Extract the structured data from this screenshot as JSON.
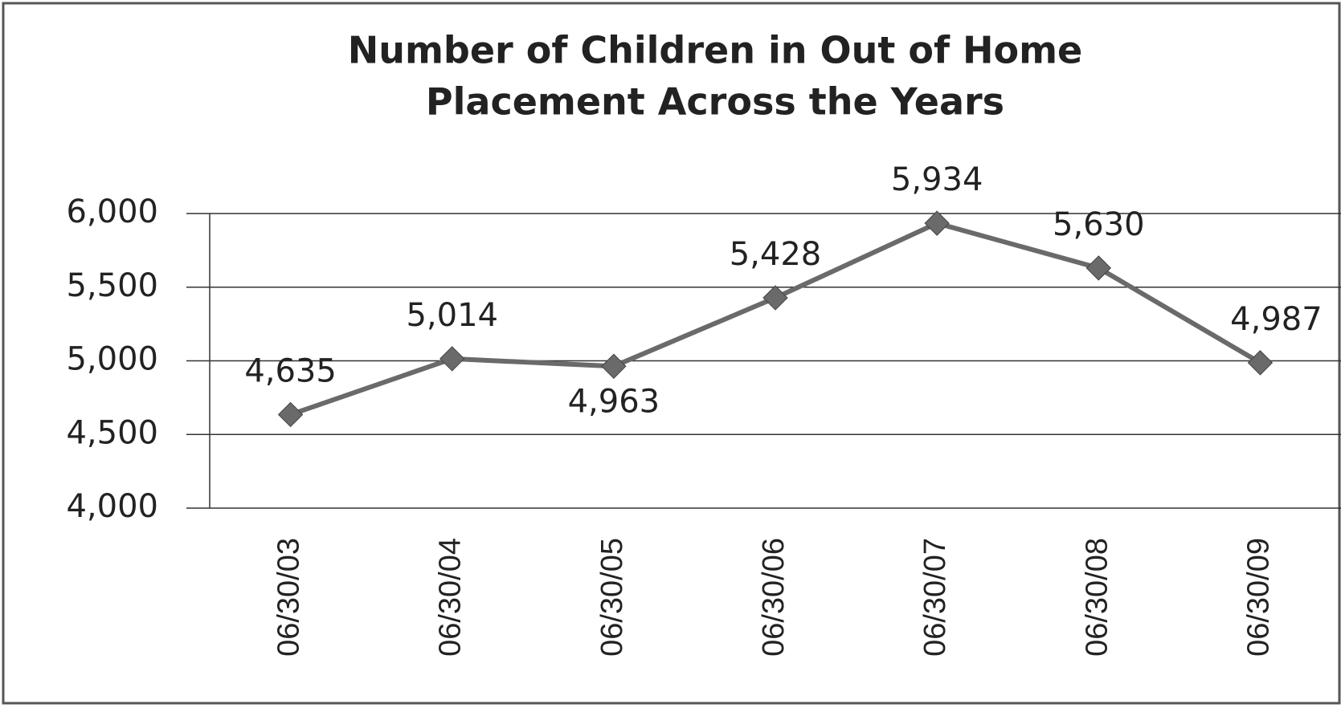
{
  "chart_data": {
    "type": "line",
    "title": [
      "Number of Children in Out of Home",
      "Placement Across the Years"
    ],
    "categories": [
      "06/30/03",
      "06/30/04",
      "06/30/05",
      "06/30/06",
      "06/30/07",
      "06/30/08",
      "06/30/09"
    ],
    "values": [
      4635,
      5014,
      4963,
      5428,
      5934,
      5630,
      4987
    ],
    "value_labels": [
      "4,635",
      "5,014",
      "4,963",
      "5,428",
      "5,934",
      "5,630",
      "4,987"
    ],
    "color": "#6a6a6a",
    "ylim": [
      4000,
      6000
    ],
    "yticks": [
      {
        "value": 4000,
        "label": "4,000"
      },
      {
        "value": 4500,
        "label": "4,500"
      },
      {
        "value": 5000,
        "label": "5,000"
      },
      {
        "value": 5500,
        "label": "5,500"
      },
      {
        "value": 6000,
        "label": "6,000"
      }
    ],
    "grid": true
  }
}
